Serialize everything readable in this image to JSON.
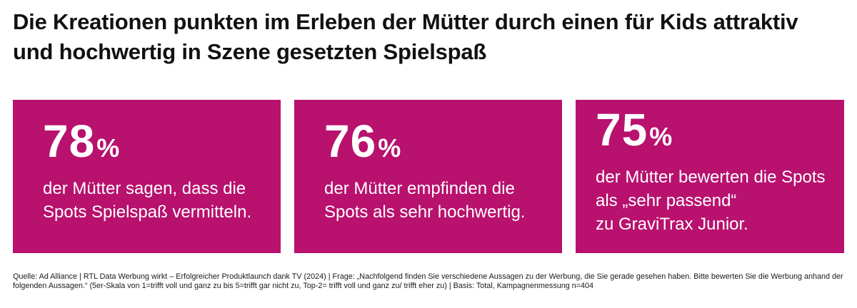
{
  "title": "Die Kreationen punkten im Erleben der Mütter durch einen für Kids attraktiv und hochwertig in Szene gesetzten Spielspaß",
  "accent_color": "#b8116e",
  "cards": [
    {
      "value": "78",
      "unit": "%",
      "lines": [
        "der Mütter sagen, dass die",
        "Spots Spielspaß vermitteln."
      ]
    },
    {
      "value": "76",
      "unit": "%",
      "lines": [
        "der Mütter empfinden die",
        "Spots als sehr hochwertig."
      ]
    },
    {
      "value": "75",
      "unit": "%",
      "lines": [
        "der Mütter bewerten die Spots",
        "als „sehr passend“",
        "zu GraviTrax Junior."
      ]
    }
  ],
  "footnote": "Quelle: Ad Alliance | RTL Data Werbung wirkt – Erfolgreicher Produktlaunch dank TV (2024) | Frage: „Nachfolgend finden Sie verschiedene Aussagen zu der Werbung, die Sie gerade gesehen haben. Bitte bewerten Sie die Werbung anhand der folgenden Aussagen.“ (5er-Skala von 1=trifft voll und ganz zu bis 5=trifft gar nicht zu, Top-2= trifft voll und ganz zu/ trifft eher zu) | Basis: Total, Kampagnenmessung n=404"
}
